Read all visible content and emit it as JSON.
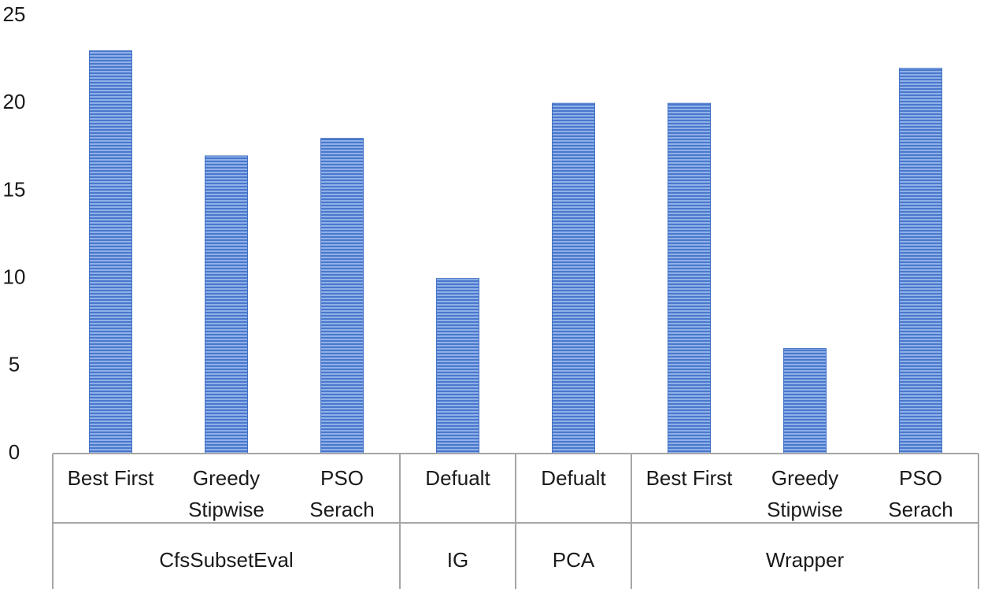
{
  "chart_data": {
    "type": "bar",
    "ylim": [
      0,
      25
    ],
    "yticks": [
      0,
      5,
      10,
      15,
      20,
      25
    ],
    "grid": false,
    "legend": "none",
    "bar_color": "#4472c4",
    "categories": [
      {
        "label": [
          "Best First"
        ],
        "group": 0
      },
      {
        "label": [
          "Greedy",
          "Stipwise"
        ],
        "group": 0
      },
      {
        "label": [
          "PSO",
          "Serach"
        ],
        "group": 0
      },
      {
        "label": [
          "Defualt"
        ],
        "group": 1
      },
      {
        "label": [
          "Defualt"
        ],
        "group": 2
      },
      {
        "label": [
          "Best First"
        ],
        "group": 3
      },
      {
        "label": [
          "Greedy",
          "Stipwise"
        ],
        "group": 3
      },
      {
        "label": [
          "PSO",
          "Serach"
        ],
        "group": 3
      }
    ],
    "groups": [
      "CfsSubsetEval",
      "IG",
      "PCA",
      "Wrapper"
    ],
    "values": [
      23,
      17,
      18,
      10,
      20,
      20,
      6,
      22
    ]
  }
}
